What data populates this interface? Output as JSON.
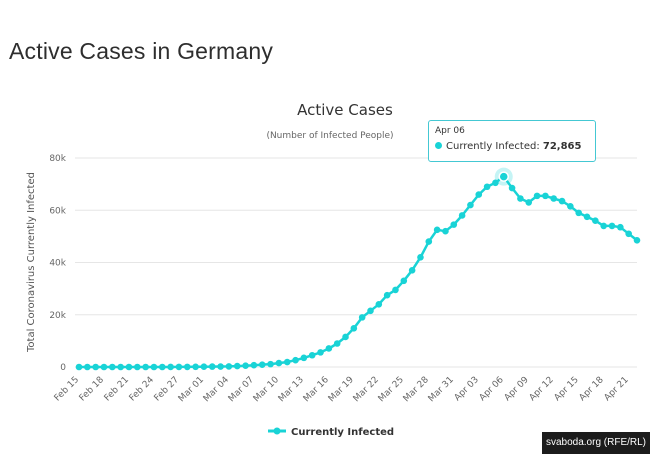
{
  "page_title": "Active Cases in Germany",
  "credit": "svaboda.org (RFE/RL)",
  "colors": {
    "series": "#19d3d6",
    "grid": "#e6e6e6",
    "tooltip_border": "#44c8d3"
  },
  "tooltip": {
    "date": "Apr 06",
    "series_label": "Currently Infected:",
    "value": "72,865"
  },
  "chart_data": {
    "type": "line",
    "title": "Active Cases",
    "subtitle": "(Number of Infected People)",
    "ylabel": "Total Coronavirus Currently Infected",
    "ylim": [
      0,
      80000
    ],
    "yticks": [
      0,
      20000,
      40000,
      60000,
      80000
    ],
    "ytick_labels": [
      "0",
      "20k",
      "40k",
      "60k",
      "80k"
    ],
    "xtick_labels": [
      "Feb 15",
      "Feb 18",
      "Feb 21",
      "Feb 24",
      "Feb 27",
      "Mar 01",
      "Mar 04",
      "Mar 07",
      "Mar 10",
      "Mar 13",
      "Mar 16",
      "Mar 19",
      "Mar 22",
      "Mar 25",
      "Mar 28",
      "Mar 31",
      "Apr 03",
      "Apr 06",
      "Apr 09",
      "Apr 12",
      "Apr 15",
      "Apr 18",
      "Apr 21"
    ],
    "grid": true,
    "legend": "bottom",
    "categories": [
      "Feb 15",
      "Feb 16",
      "Feb 17",
      "Feb 18",
      "Feb 19",
      "Feb 20",
      "Feb 21",
      "Feb 22",
      "Feb 23",
      "Feb 24",
      "Feb 25",
      "Feb 26",
      "Feb 27",
      "Feb 28",
      "Feb 29",
      "Mar 01",
      "Mar 02",
      "Mar 03",
      "Mar 04",
      "Mar 05",
      "Mar 06",
      "Mar 07",
      "Mar 08",
      "Mar 09",
      "Mar 10",
      "Mar 11",
      "Mar 12",
      "Mar 13",
      "Mar 14",
      "Mar 15",
      "Mar 16",
      "Mar 17",
      "Mar 18",
      "Mar 19",
      "Mar 20",
      "Mar 21",
      "Mar 22",
      "Mar 23",
      "Mar 24",
      "Mar 25",
      "Mar 26",
      "Mar 27",
      "Mar 28",
      "Mar 29",
      "Mar 30",
      "Mar 31",
      "Apr 01",
      "Apr 02",
      "Apr 03",
      "Apr 04",
      "Apr 05",
      "Apr 06",
      "Apr 07",
      "Apr 08",
      "Apr 09",
      "Apr 10",
      "Apr 11",
      "Apr 12",
      "Apr 13",
      "Apr 14",
      "Apr 15",
      "Apr 16",
      "Apr 17",
      "Apr 18",
      "Apr 19",
      "Apr 20",
      "Apr 21",
      "Apr 22"
    ],
    "series": [
      {
        "name": "Currently Infected",
        "values": [
          2,
          2,
          2,
          2,
          2,
          2,
          2,
          2,
          2,
          2,
          3,
          10,
          30,
          40,
          60,
          110,
          150,
          180,
          230,
          350,
          500,
          700,
          900,
          1100,
          1500,
          1900,
          2600,
          3500,
          4500,
          5600,
          7100,
          9000,
          11500,
          14800,
          19000,
          21500,
          24000,
          27500,
          29500,
          33000,
          37000,
          42000,
          48000,
          52500,
          52000,
          54500,
          58000,
          62000,
          66000,
          69000,
          70500,
          72865,
          68500,
          64500,
          63000,
          65500,
          65500,
          64500,
          63500,
          61500,
          59000,
          57500,
          56000,
          54000,
          54000,
          53500,
          51000,
          48500
        ]
      }
    ]
  }
}
